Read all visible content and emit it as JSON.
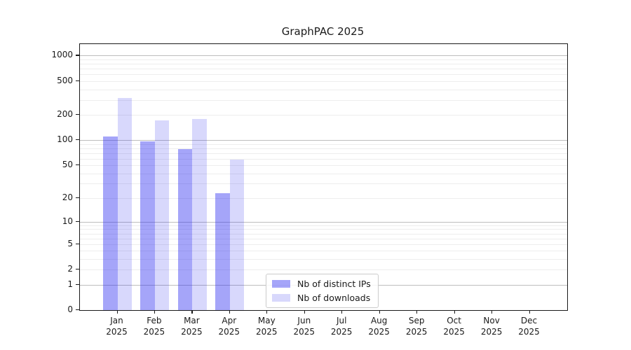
{
  "chart_data": {
    "type": "bar",
    "title": "GraphPAC 2025",
    "categories": [
      {
        "month": "Jan",
        "year": "2025"
      },
      {
        "month": "Feb",
        "year": "2025"
      },
      {
        "month": "Mar",
        "year": "2025"
      },
      {
        "month": "Apr",
        "year": "2025"
      },
      {
        "month": "May",
        "year": "2025"
      },
      {
        "month": "Jun",
        "year": "2025"
      },
      {
        "month": "Jul",
        "year": "2025"
      },
      {
        "month": "Aug",
        "year": "2025"
      },
      {
        "month": "Sep",
        "year": "2025"
      },
      {
        "month": "Oct",
        "year": "2025"
      },
      {
        "month": "Nov",
        "year": "2025"
      },
      {
        "month": "Dec",
        "year": "2025"
      }
    ],
    "series": [
      {
        "name": "Nb of distinct IPs",
        "color": "rgba(40,40,240,0.42)",
        "color_hex": "#a5a5f9",
        "values": [
          110,
          97,
          78,
          23,
          0,
          0,
          0,
          0,
          0,
          0,
          0,
          0
        ]
      },
      {
        "name": "Nb of downloads",
        "color": "rgba(40,40,240,0.18)",
        "color_hex": "#d8d8fc",
        "values": [
          318,
          173,
          179,
          58,
          0,
          0,
          0,
          0,
          0,
          0,
          0,
          0
        ]
      }
    ],
    "y_axis": {
      "scale": "log10(1+v)",
      "ticks": [
        0,
        1,
        2,
        5,
        10,
        20,
        50,
        100,
        200,
        500,
        1000
      ],
      "top_value": 1365,
      "major_gridlines": [
        1,
        10,
        100,
        1000
      ],
      "grid_major_color": "#bdbdbd",
      "grid_minor_color": "#ededed"
    },
    "x_axis": {
      "label": "",
      "categories_padding": 1
    },
    "legend": {
      "location": "lower center",
      "entries": [
        "Nb of distinct IPs",
        "Nb of downloads"
      ]
    },
    "grid": true
  },
  "colors": {
    "background": "#ffffff",
    "axis": "#1a1a1a",
    "text": "#1a1a1a"
  }
}
